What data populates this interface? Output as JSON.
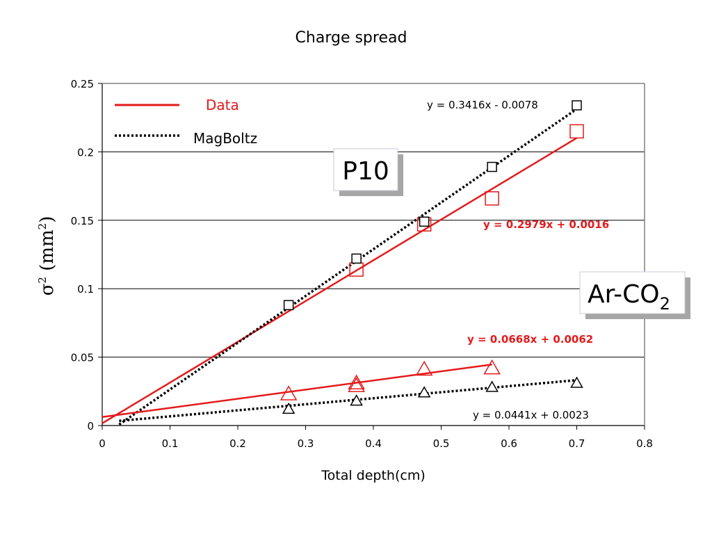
{
  "chart_data": {
    "type": "scatter",
    "title": "Charge spread",
    "xlabel": "Total depth(cm)",
    "ylabel_base": "σ",
    "ylabel_sup": "2",
    "ylabel_paren_open": " (mm",
    "ylabel_unit_sup": "2",
    "ylabel_paren_close": ")",
    "xlim": [
      0,
      0.8
    ],
    "ylim": [
      0,
      0.25
    ],
    "x_ticks": [
      "0",
      "0.1",
      "0.2",
      "0.3",
      "0.4",
      "0.5",
      "0.6",
      "0.7",
      "0.8"
    ],
    "y_ticks": [
      "0",
      "0.05",
      "0.1",
      "0.15",
      "0.2",
      "0.25"
    ],
    "grid": "horizontal",
    "legend": {
      "placement": "top-left",
      "entries": [
        {
          "label": "Data",
          "style": "solid",
          "color": "#e31a1c"
        },
        {
          "label": "MagBoltz",
          "style": "dotted",
          "color": "#000000"
        }
      ]
    },
    "series": [
      {
        "gas": "P10",
        "kind": "data",
        "marker": "square",
        "color": "#e31a1c",
        "x": [
          0.375,
          0.475,
          0.575,
          0.7
        ],
        "y": [
          0.114,
          0.147,
          0.166,
          0.215
        ],
        "fit": {
          "slope": 0.2979,
          "intercept": 0.0016,
          "x_range": [
            0,
            0.7
          ]
        }
      },
      {
        "gas": "P10",
        "kind": "magboltz",
        "marker": "square",
        "color": "#000000",
        "x": [
          0.275,
          0.375,
          0.475,
          0.575,
          0.7
        ],
        "y": [
          0.088,
          0.122,
          0.149,
          0.189,
          0.234
        ],
        "fit": {
          "slope": 0.3416,
          "intercept": -0.0078,
          "x_range": [
            0.025,
            0.7
          ]
        }
      },
      {
        "gas": "Ar-CO2",
        "kind": "data",
        "marker": "triangle",
        "color": "#e31a1c",
        "x": [
          0.275,
          0.375,
          0.375,
          0.475,
          0.575
        ],
        "y": [
          0.023,
          0.029,
          0.031,
          0.041,
          0.042
        ],
        "fit": {
          "slope": 0.0668,
          "intercept": 0.0062,
          "x_range": [
            0,
            0.575
          ]
        }
      },
      {
        "gas": "Ar-CO2",
        "kind": "magboltz",
        "marker": "triangle",
        "color": "#000000",
        "x": [
          0.275,
          0.375,
          0.475,
          0.575,
          0.7
        ],
        "y": [
          0.012,
          0.018,
          0.024,
          0.028,
          0.031
        ],
        "fit": {
          "slope": 0.0441,
          "intercept": 0.0023,
          "x_range": [
            0.025,
            0.7
          ]
        }
      }
    ],
    "annotations": {
      "eq_p10_magboltz": "y = 0.3416x - 0.0078",
      "eq_p10_data": "y = 0.2979x + 0.0016",
      "eq_arco2_data": "y = 0.0668x + 0.0062",
      "eq_arco2_magboltz": "y = 0.0441x + 0.0023"
    },
    "boxes": {
      "p10": "P10",
      "arco2_main": "Ar-CO",
      "arco2_sub": "2"
    }
  }
}
